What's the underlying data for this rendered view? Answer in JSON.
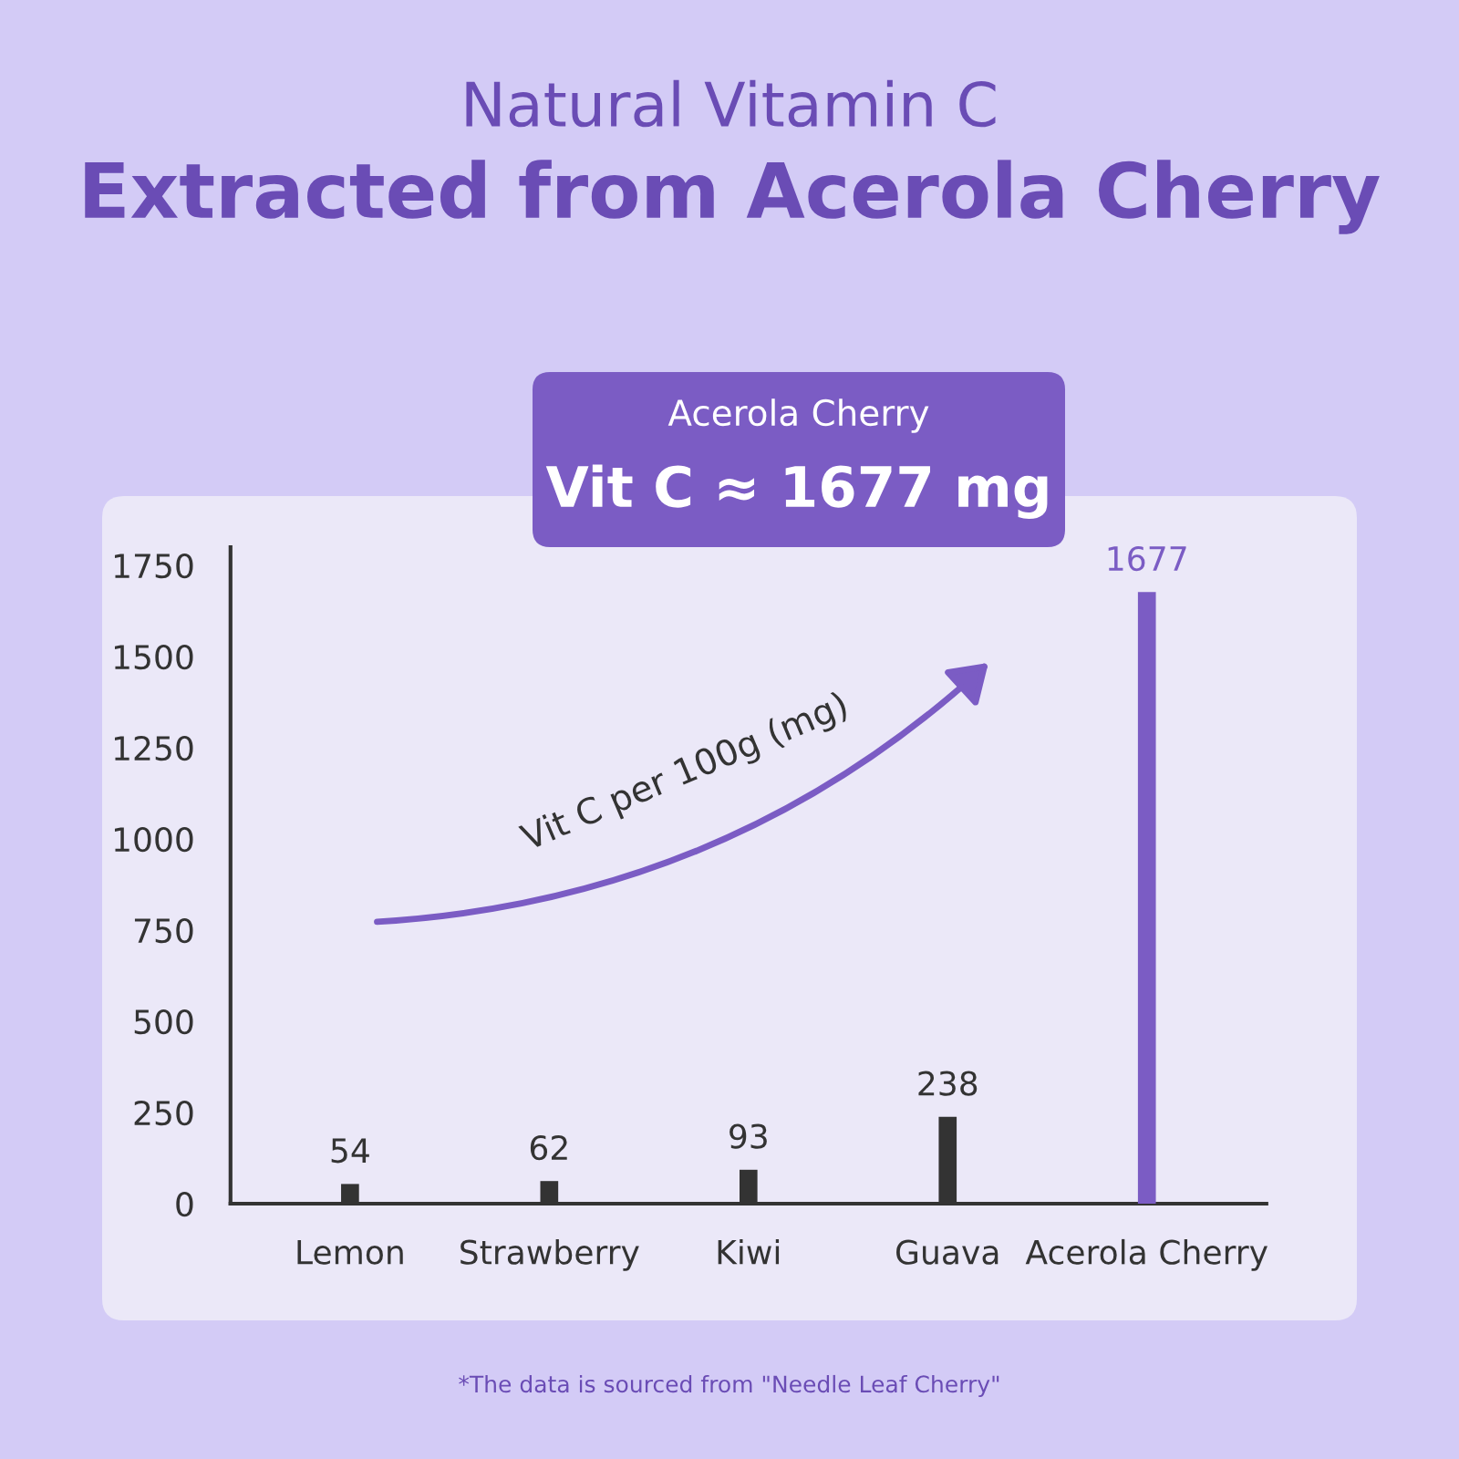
{
  "chart_data": {
    "type": "bar",
    "title": "Natural Vitamin C",
    "subtitle": "Extracted from Acerola Cherry",
    "categories": [
      "Lemon",
      "Strawberry",
      "Kiwi",
      "Guava",
      "Acerola Cherry"
    ],
    "values": [
      54,
      62,
      93,
      238,
      1677
    ],
    "colors": [
      "#333333",
      "#333333",
      "#333333",
      "#333333",
      "#7b5cc4"
    ],
    "ylim": [
      0,
      1800
    ],
    "yticks": [
      0,
      250,
      500,
      750,
      1000,
      1250,
      1500,
      1750
    ],
    "grid": false,
    "data_labels": true,
    "annotations": [
      "Acerola Cherry",
      "Vit C ≈ 1677 mg",
      "Vit C per 100g (mg)",
      "*The data is sourced from \"Needle Leaf Cherry\""
    ]
  }
}
